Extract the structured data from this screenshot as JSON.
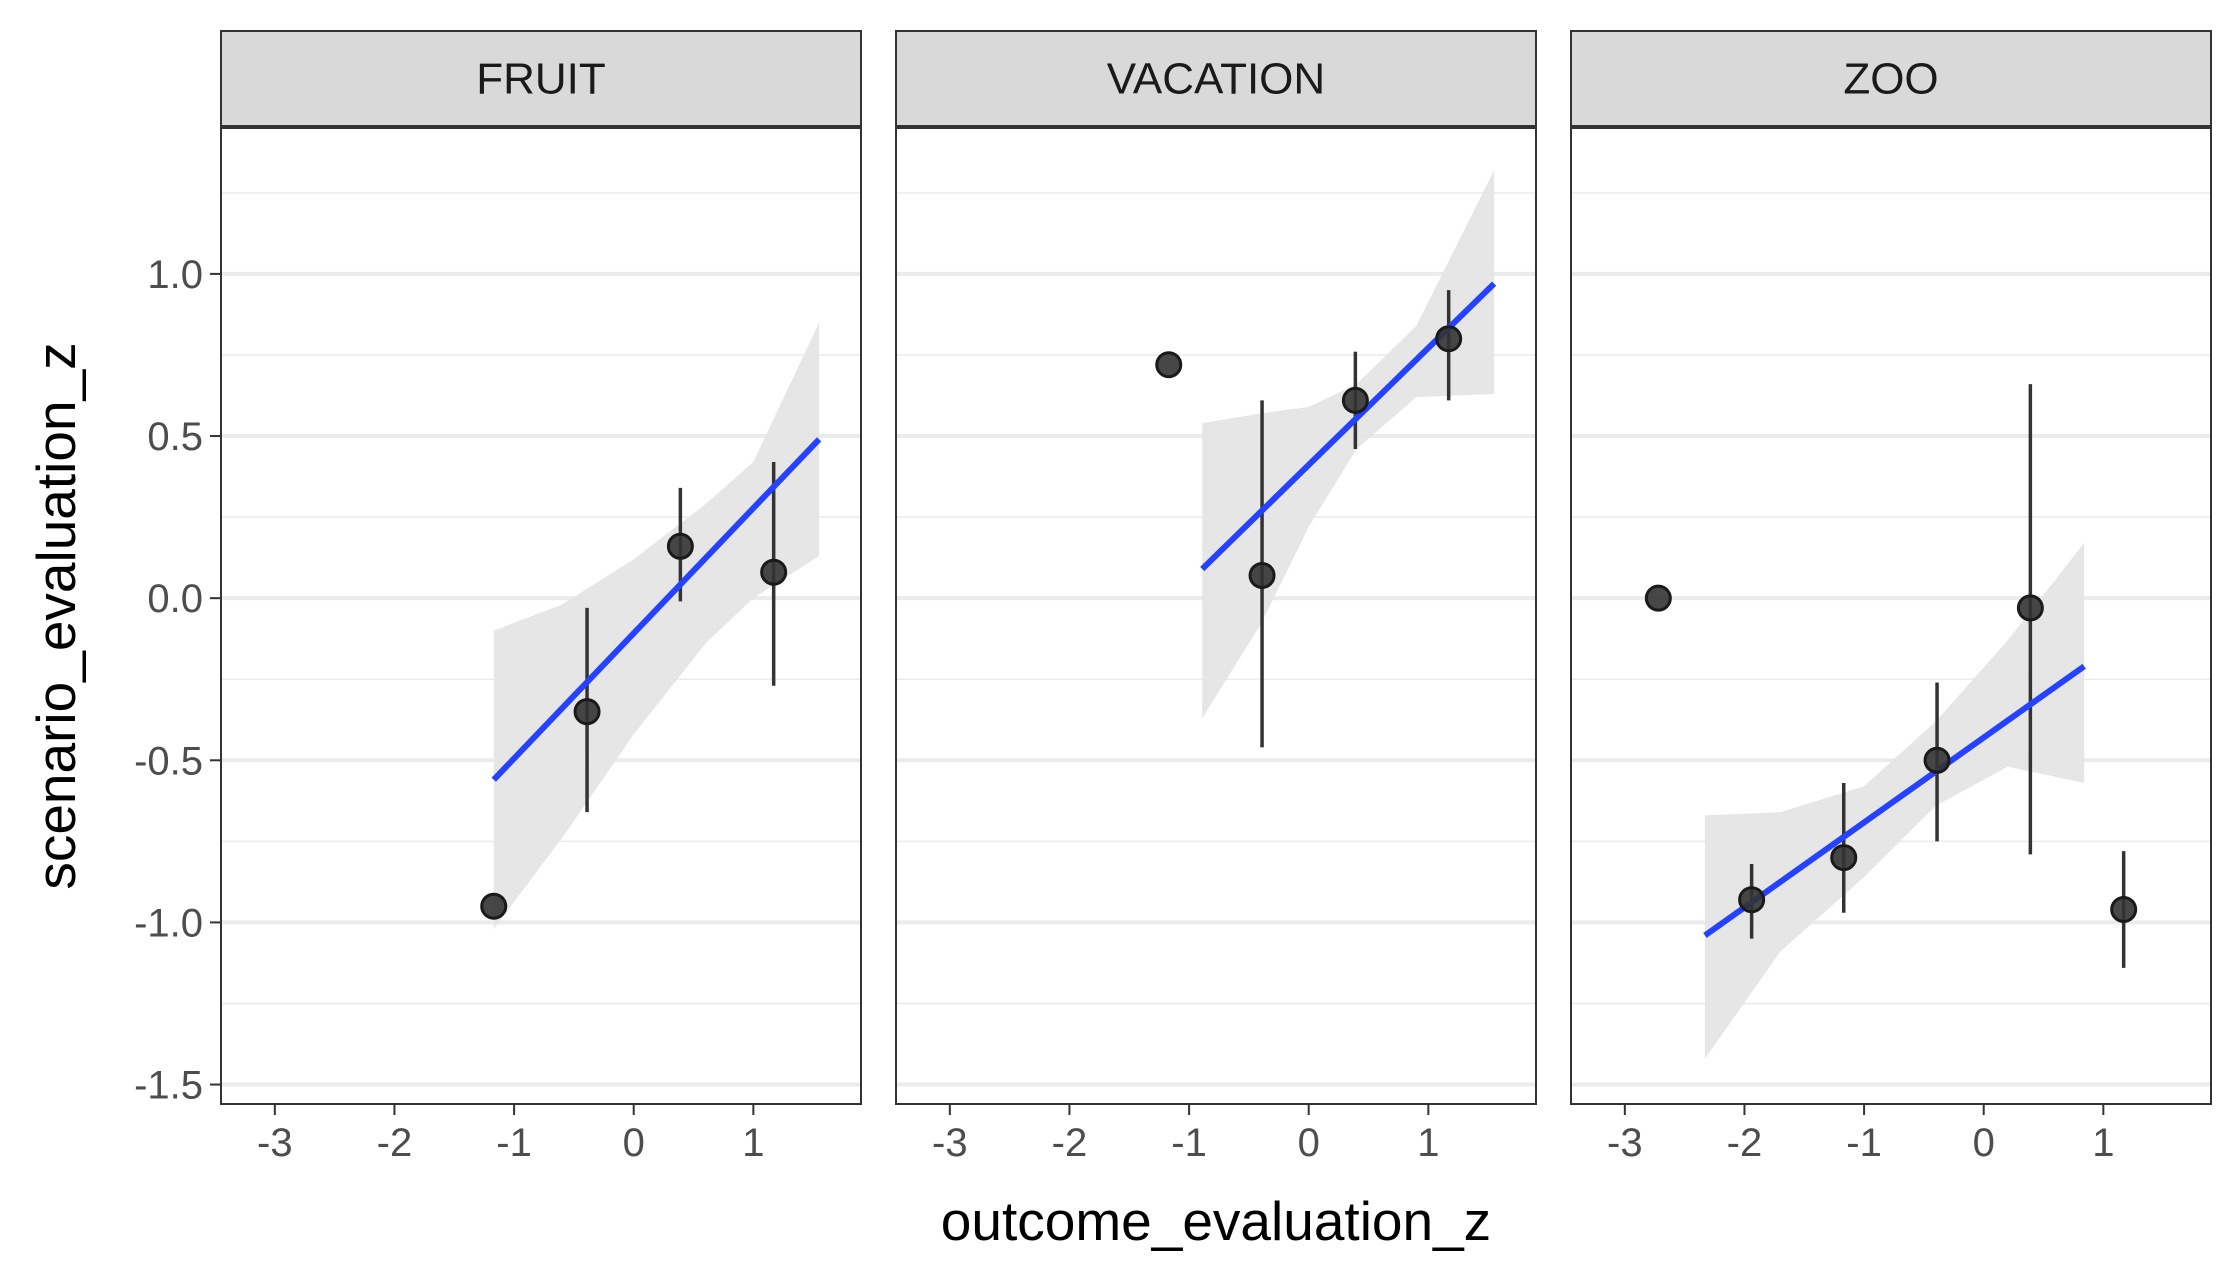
{
  "chart_data": {
    "type": "scatter",
    "facet_by": "scenario",
    "xlabel": "outcome_evaluation_z",
    "ylabel": "scenario_evaluation_z",
    "xlim": [
      -3.45,
      1.9
    ],
    "ylim": [
      -1.56,
      1.45
    ],
    "x_ticks": [
      -3,
      -2,
      -1,
      0,
      1
    ],
    "x_tick_labels": [
      "-3",
      "-2",
      "-1",
      "0",
      "1"
    ],
    "y_ticks": [
      -1.5,
      -1.0,
      -0.5,
      0.0,
      0.5,
      1.0
    ],
    "y_tick_labels": [
      "-1.5",
      "-1.0",
      "-0.5",
      "0.0",
      "0.5",
      "1.0"
    ],
    "grid": true,
    "colors": {
      "point": "#333333",
      "error_bar": "#333333",
      "fit_line": "#2442ff",
      "ribbon": "#e5e5e5",
      "strip_fill": "#d9d9d9",
      "grid": "#ebebeb",
      "border": "#333333"
    },
    "panels": [
      {
        "title": "FRUIT",
        "points": [
          {
            "x": -1.17,
            "y": -0.95,
            "lo": null,
            "hi": null
          },
          {
            "x": -0.39,
            "y": -0.35,
            "lo": -0.66,
            "hi": -0.03
          },
          {
            "x": 0.39,
            "y": 0.16,
            "lo": -0.01,
            "hi": 0.34
          },
          {
            "x": 1.17,
            "y": 0.08,
            "lo": -0.27,
            "hi": 0.42
          }
        ],
        "fit": {
          "x": [
            -1.17,
            1.55
          ],
          "y": [
            -0.56,
            0.49
          ]
        },
        "ribbon": {
          "x": [
            -1.17,
            -0.6,
            0.0,
            0.6,
            1.0,
            1.55
          ],
          "lo": [
            -1.02,
            -0.74,
            -0.42,
            -0.14,
            0.0,
            0.13
          ],
          "hi": [
            -0.1,
            -0.02,
            0.12,
            0.29,
            0.42,
            0.85
          ]
        }
      },
      {
        "title": "VACATION",
        "points": [
          {
            "x": -1.17,
            "y": 0.72,
            "lo": null,
            "hi": null
          },
          {
            "x": -0.39,
            "y": 0.07,
            "lo": -0.46,
            "hi": 0.61
          },
          {
            "x": 0.39,
            "y": 0.61,
            "lo": 0.46,
            "hi": 0.76
          },
          {
            "x": 1.17,
            "y": 0.8,
            "lo": 0.61,
            "hi": 0.95
          }
        ],
        "fit": {
          "x": [
            -0.89,
            1.55
          ],
          "y": [
            0.09,
            0.97
          ]
        },
        "ribbon": {
          "x": [
            -0.89,
            -0.4,
            0.0,
            0.4,
            0.9,
            1.55
          ],
          "lo": [
            -0.37,
            -0.08,
            0.22,
            0.46,
            0.62,
            0.63
          ],
          "hi": [
            0.54,
            0.57,
            0.59,
            0.66,
            0.84,
            1.32
          ]
        }
      },
      {
        "title": "ZOO",
        "points": [
          {
            "x": -2.72,
            "y": 0.0,
            "lo": null,
            "hi": null
          },
          {
            "x": -1.94,
            "y": -0.93,
            "lo": -1.05,
            "hi": -0.82
          },
          {
            "x": -1.17,
            "y": -0.8,
            "lo": -0.97,
            "hi": -0.57
          },
          {
            "x": -0.39,
            "y": -0.5,
            "lo": -0.75,
            "hi": -0.26
          },
          {
            "x": 0.39,
            "y": -0.03,
            "lo": -0.79,
            "hi": 0.66
          },
          {
            "x": 1.17,
            "y": -0.96,
            "lo": -1.14,
            "hi": -0.78
          }
        ],
        "fit": {
          "x": [
            -2.33,
            0.84
          ],
          "y": [
            -1.04,
            -0.21
          ]
        },
        "ribbon": {
          "x": [
            -2.33,
            -1.7,
            -1.0,
            -0.4,
            0.2,
            0.84
          ],
          "lo": [
            -1.42,
            -1.09,
            -0.86,
            -0.64,
            -0.52,
            -0.57
          ],
          "hi": [
            -0.67,
            -0.66,
            -0.58,
            -0.38,
            -0.13,
            0.17
          ]
        }
      }
    ]
  }
}
